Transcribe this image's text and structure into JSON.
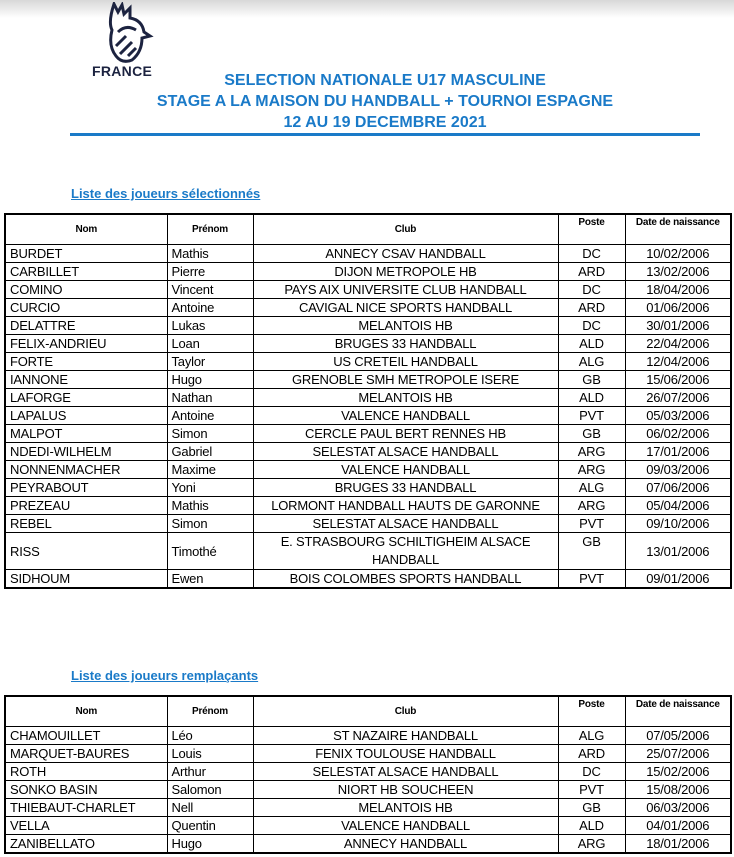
{
  "header": {
    "logo_text": "FRANCE",
    "title_lines": [
      "SELECTION NATIONALE U17 MASCULINE",
      "STAGE A LA MAISON DU HANDBALL + TOURNOI ESPAGNE",
      "12 AU 19 DECEMBRE 2021"
    ],
    "accent_color": "#1a7ac8"
  },
  "columns": [
    "Nom",
    "Prénom",
    "Club",
    "Poste",
    "Date de naissance"
  ],
  "selected": {
    "heading": "Liste des joueurs sélectionnés",
    "rows": [
      [
        "BURDET",
        "Mathis",
        "ANNECY CSAV HANDBALL",
        "DC",
        "10/02/2006"
      ],
      [
        "CARBILLET",
        "Pierre",
        "DIJON METROPOLE HB",
        "ARD",
        "13/02/2006"
      ],
      [
        "COMINO",
        "Vincent",
        "PAYS AIX UNIVERSITE CLUB HANDBALL",
        "DC",
        "18/04/2006"
      ],
      [
        "CURCIO",
        "Antoine",
        "CAVIGAL NICE SPORTS HANDBALL",
        "ARD",
        "01/06/2006"
      ],
      [
        "DELATTRE",
        "Lukas",
        "MELANTOIS HB",
        "DC",
        "30/01/2006"
      ],
      [
        "FELIX-ANDRIEU",
        "Loan",
        "BRUGES 33 HANDBALL",
        "ALD",
        "22/04/2006"
      ],
      [
        "FORTE",
        "Taylor",
        "US CRETEIL HANDBALL",
        "ALG",
        "12/04/2006"
      ],
      [
        "IANNONE",
        "Hugo",
        "GRENOBLE SMH METROPOLE ISERE",
        "GB",
        "15/06/2006"
      ],
      [
        "LAFORGE",
        "Nathan",
        "MELANTOIS HB",
        "ALD",
        "26/07/2006"
      ],
      [
        "LAPALUS",
        "Antoine",
        "VALENCE HANDBALL",
        "PVT",
        "05/03/2006"
      ],
      [
        "MALPOT",
        "Simon",
        "CERCLE PAUL BERT RENNES HB",
        "GB",
        "06/02/2006"
      ],
      [
        "NDEDI-WILHELM",
        "Gabriel",
        "SELESTAT ALSACE HANDBALL",
        "ARG",
        "17/01/2006"
      ],
      [
        "NONNENMACHER",
        "Maxime",
        "VALENCE HANDBALL",
        "ARG",
        "09/03/2006"
      ],
      [
        "PEYRABOUT",
        "Yoni",
        "BRUGES 33 HANDBALL",
        "ALG",
        "07/06/2006"
      ],
      [
        "PREZEAU",
        "Mathis",
        "LORMONT HANDBALL HAUTS DE GARONNE",
        "ARG",
        "05/04/2006"
      ],
      [
        "REBEL",
        "Simon",
        "SELESTAT ALSACE HANDBALL",
        "PVT",
        "09/10/2006"
      ],
      [
        "RISS",
        "Timothé",
        "E. STRASBOURG SCHILTIGHEIM ALSACE HANDBALL",
        "GB",
        "13/01/2006"
      ],
      [
        "SIDHOUM",
        "Ewen",
        "BOIS COLOMBES SPORTS HANDBALL",
        "PVT",
        "09/01/2006"
      ]
    ]
  },
  "substitutes": {
    "heading": "Liste des joueurs remplaçants",
    "rows": [
      [
        "CHAMOUILLET",
        "Léo",
        "ST NAZAIRE HANDBALL",
        "ALG",
        "07/05/2006"
      ],
      [
        "MARQUET-BAURES",
        "Louis",
        "FENIX TOULOUSE HANDBALL",
        "ARD",
        "25/07/2006"
      ],
      [
        "ROTH",
        "Arthur",
        "SELESTAT ALSACE HANDBALL",
        "DC",
        "15/02/2006"
      ],
      [
        "SONKO BASIN",
        "Salomon",
        "NIORT HB SOUCHEEN",
        "PVT",
        "15/08/2006"
      ],
      [
        "THIEBAUT-CHARLET",
        "Nell",
        "MELANTOIS HB",
        "GB",
        "06/03/2006"
      ],
      [
        "VELLA",
        "Quentin",
        "VALENCE HANDBALL",
        "ALD",
        "04/01/2006"
      ],
      [
        "ZANIBELLATO",
        "Hugo",
        "ANNECY HANDBALL",
        "ARG",
        "18/01/2006"
      ]
    ]
  }
}
